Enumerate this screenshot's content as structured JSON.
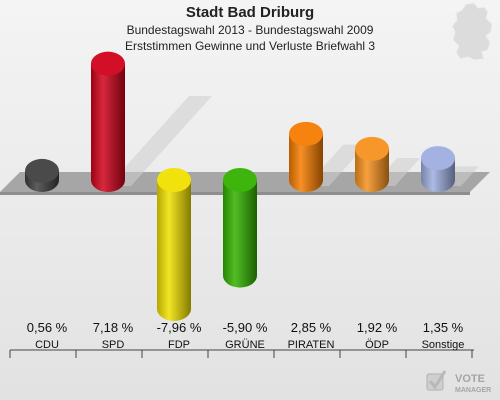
{
  "header": {
    "title": "Stadt Bad Driburg",
    "subtitle": "Bundestagswahl 2013 - Bundestagswahl 2009",
    "subtitle2": "Erststimmen Gewinne und Verluste Briefwahl 3"
  },
  "chart_data": {
    "type": "bar",
    "categories": [
      "CDU",
      "SPD",
      "FDP",
      "GRÜNE",
      "PIRATEN",
      "ÖDP",
      "Sonstige"
    ],
    "values": [
      0.56,
      7.18,
      -7.96,
      -5.9,
      2.85,
      1.92,
      1.35
    ],
    "value_labels": [
      "0,56 %",
      "7,18 %",
      "-7,96 %",
      "-5,90 %",
      "2,85 %",
      "1,92 %",
      "1,35 %"
    ],
    "colors": [
      "#404040",
      "#d0021b",
      "#f0e000",
      "#33b100",
      "#f57c00",
      "#f5921e",
      "#9eaee0"
    ],
    "title": "Stadt Bad Driburg"
  },
  "branding": {
    "logo_text_1": "VOTE",
    "logo_text_2": "MANAGER"
  }
}
